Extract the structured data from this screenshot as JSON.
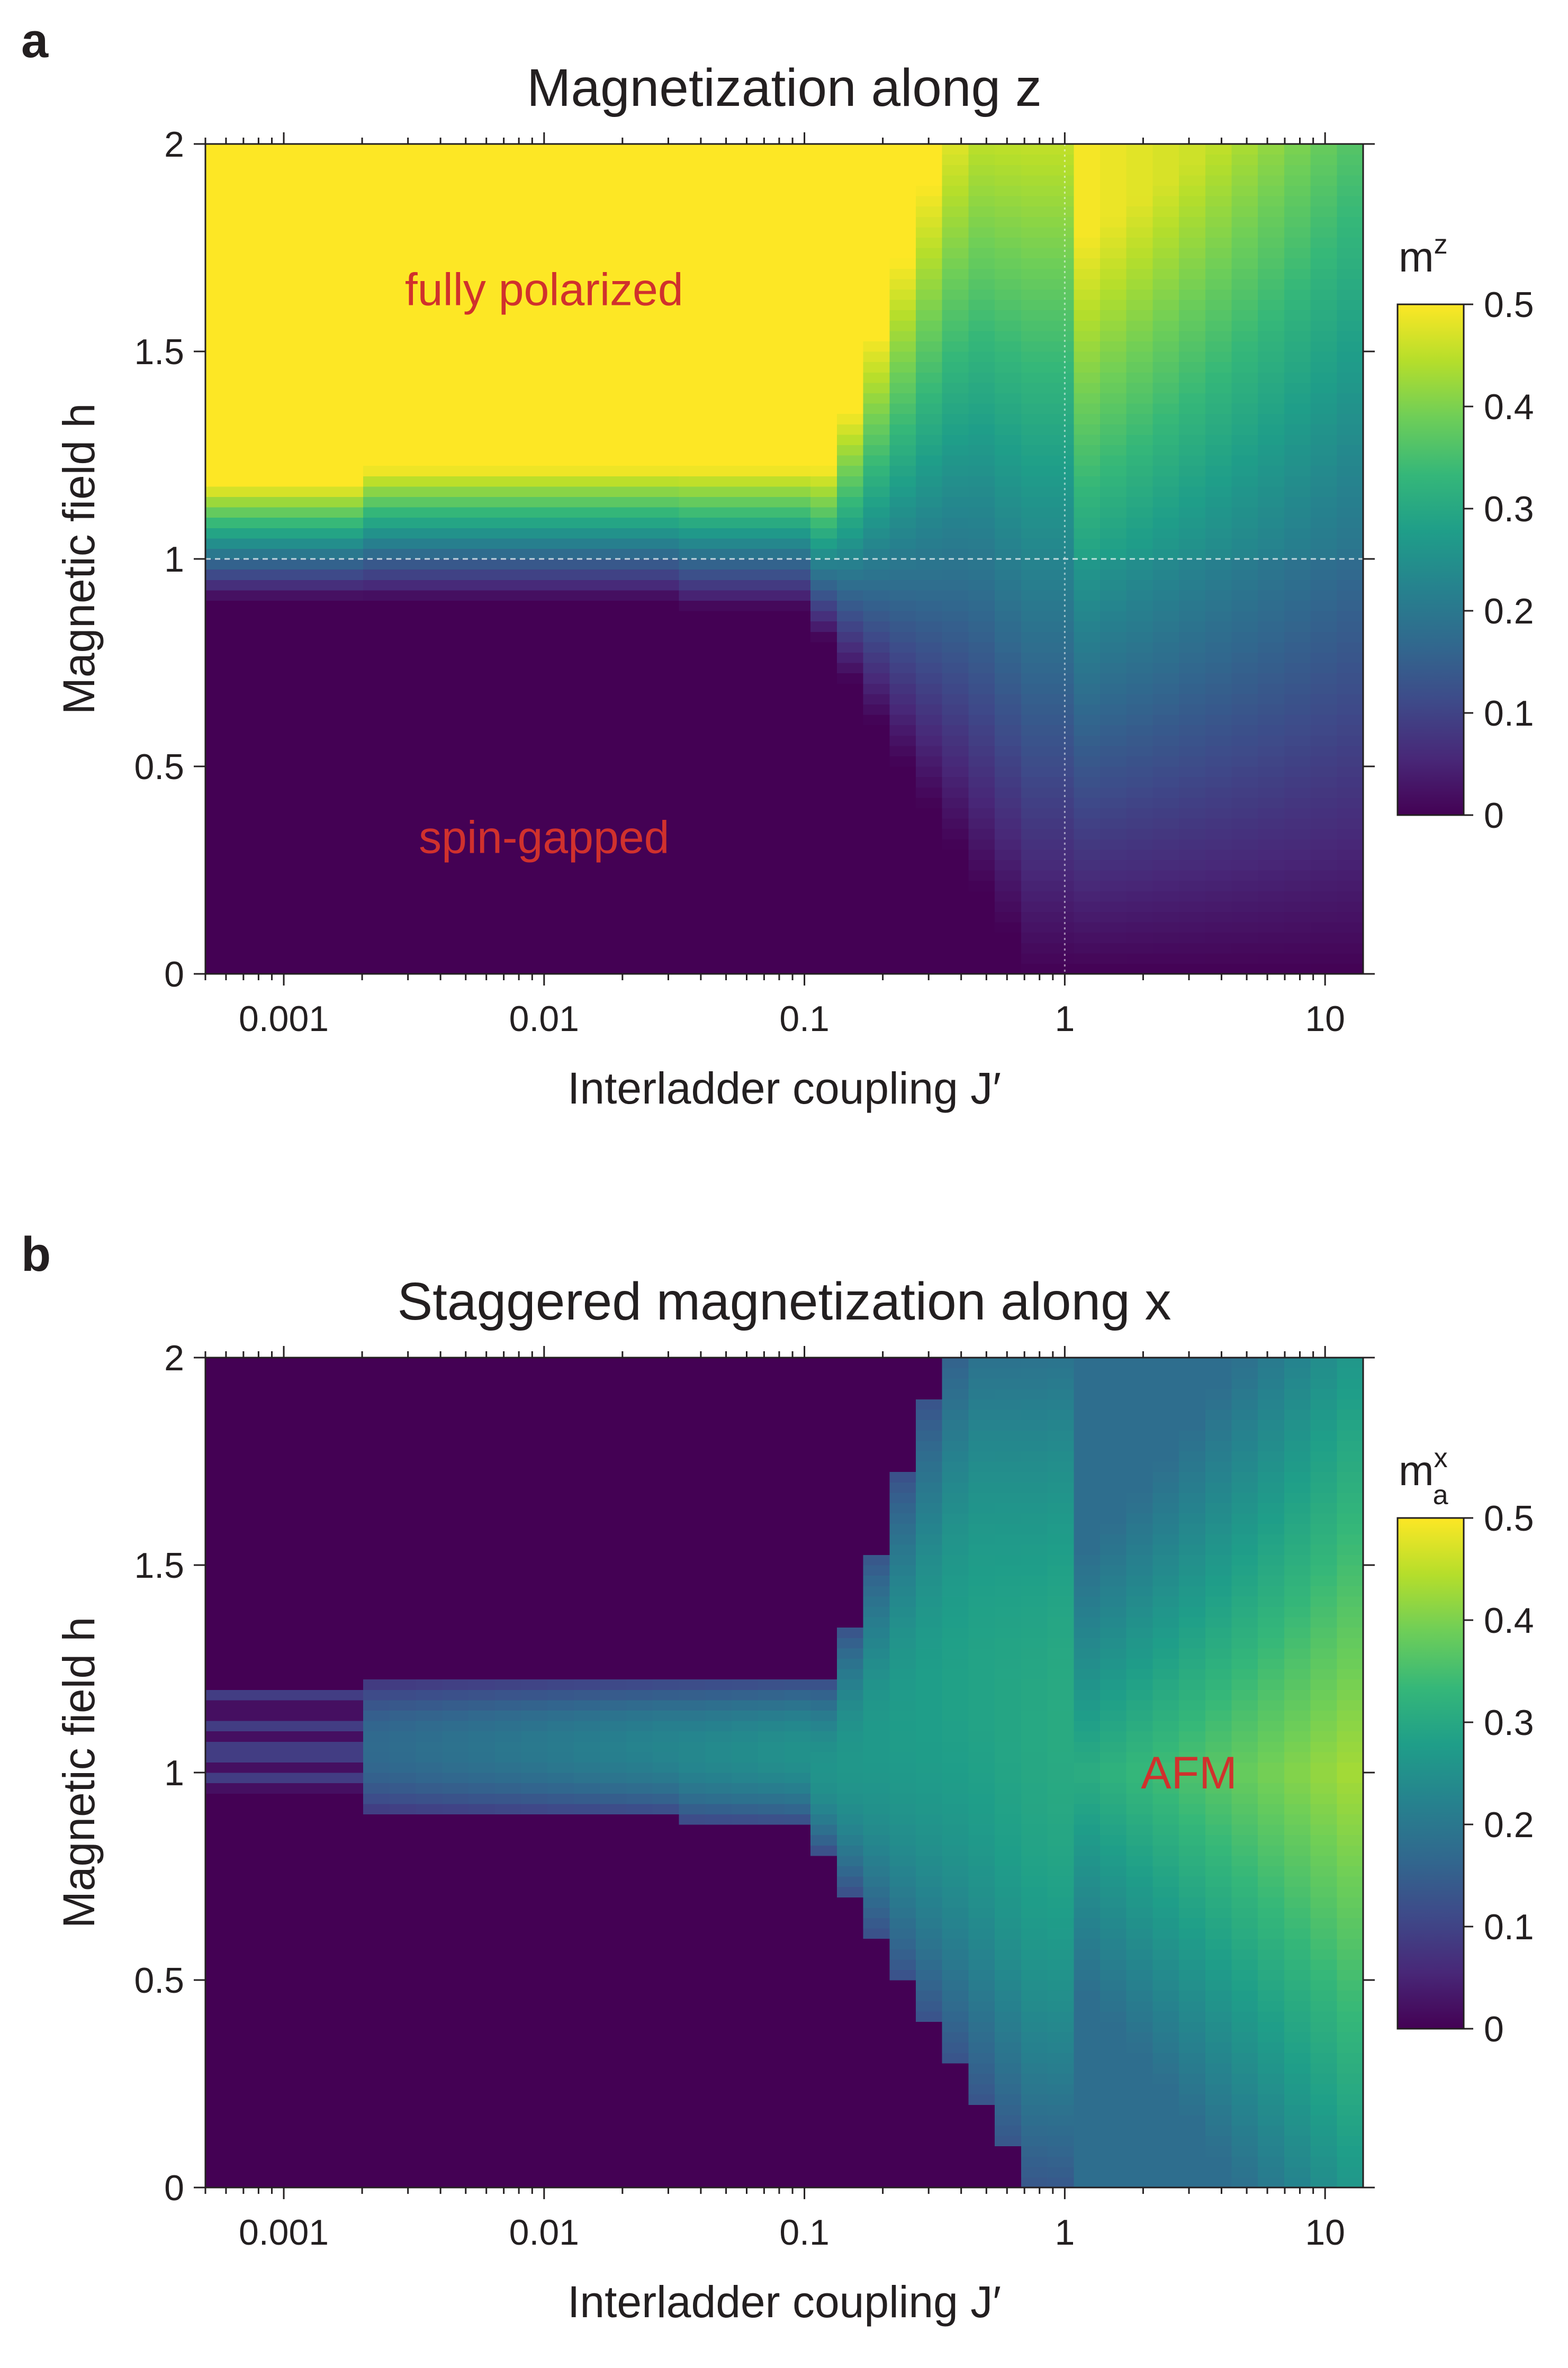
{
  "chart_data": [
    {
      "type": "heatmap",
      "panel": "a",
      "title": "Magnetization along z",
      "xlabel": "Interladder coupling J′",
      "ylabel": "Magnetic field h",
      "xscale": "log",
      "xlim": [
        0.0005,
        14
      ],
      "ylim": [
        0,
        2
      ],
      "xticks": [
        0.001,
        0.01,
        0.1,
        1,
        10
      ],
      "xtick_labels": [
        "0.001",
        "0.01",
        "0.1",
        "1",
        "10"
      ],
      "yticks": [
        0,
        0.5,
        1,
        1.5,
        2
      ],
      "ytick_labels": [
        "0",
        "0.5",
        "1",
        "1.5",
        "2"
      ],
      "colorbar": {
        "label_base": "m",
        "label_sup": "z",
        "label_sub": "",
        "range": [
          0,
          0.5
        ],
        "ticks": [
          0,
          0.1,
          0.2,
          0.3,
          0.4,
          0.5
        ],
        "tick_labels": [
          "0",
          "0.1",
          "0.2",
          "0.3",
          "0.4",
          "0.5"
        ],
        "colormap": "viridis"
      },
      "model": "mz",
      "reference_lines": {
        "h": 1,
        "x": 1
      },
      "annotations": [
        {
          "text": "fully polarized",
          "x": 0.01,
          "y": 1.65
        },
        {
          "text": "spin-gapped",
          "x": 0.01,
          "y": 0.33
        }
      ]
    },
    {
      "type": "heatmap",
      "panel": "b",
      "title": "Staggered magnetization along x",
      "xlabel": "Interladder coupling J′",
      "ylabel": "Magnetic field h",
      "xscale": "log",
      "xlim": [
        0.0005,
        14
      ],
      "ylim": [
        0,
        2
      ],
      "xticks": [
        0.001,
        0.01,
        0.1,
        1,
        10
      ],
      "xtick_labels": [
        "0.001",
        "0.01",
        "0.1",
        "1",
        "10"
      ],
      "yticks": [
        0,
        0.5,
        1,
        1.5,
        2
      ],
      "ytick_labels": [
        "0",
        "0.5",
        "1",
        "1.5",
        "2"
      ],
      "colorbar": {
        "label_base": "m",
        "label_sup": "x",
        "label_sub": "a",
        "range": [
          0,
          0.5
        ],
        "ticks": [
          0,
          0.1,
          0.2,
          0.3,
          0.4,
          0.5
        ],
        "tick_labels": [
          "0",
          "0.1",
          "0.2",
          "0.3",
          "0.4",
          "0.5"
        ],
        "colormap": "viridis"
      },
      "model": "mx",
      "reference_lines": null,
      "annotations": [
        {
          "text": "AFM",
          "x": 3,
          "y": 1.0
        }
      ]
    }
  ]
}
